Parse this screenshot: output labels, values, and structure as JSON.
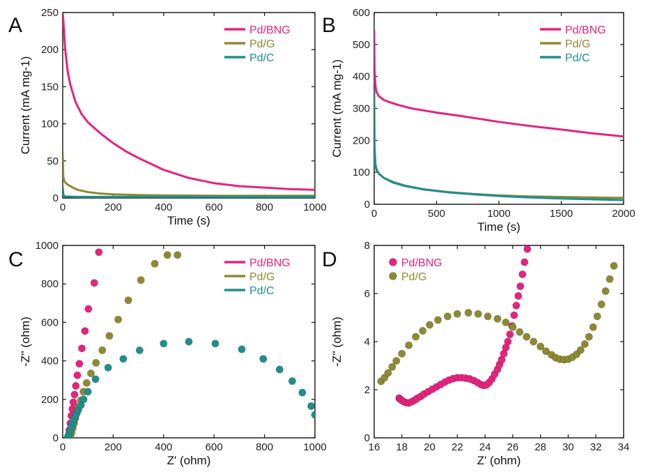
{
  "figure": {
    "colors": {
      "Pd/BNG": "#e6237e",
      "Pd/G": "#8d8a32",
      "Pd/C": "#1f8f8c"
    }
  },
  "chart_data": [
    {
      "panel": "A",
      "type": "line",
      "xlabel": "Time (s)",
      "ylabel": "Current (mA mg-1)",
      "xlim": [
        0,
        1000
      ],
      "ylim": [
        0,
        250
      ],
      "xticks": [
        0,
        200,
        400,
        600,
        800,
        1000
      ],
      "yticks": [
        0,
        50,
        100,
        150,
        200,
        250
      ],
      "legend": "top-right",
      "grid": false,
      "series": [
        {
          "name": "Pd/BNG",
          "color": "#e6237e",
          "x": [
            0,
            5,
            10,
            20,
            30,
            50,
            75,
            100,
            150,
            200,
            250,
            300,
            400,
            500,
            600,
            700,
            800,
            900,
            1000
          ],
          "y": [
            250,
            228,
            200,
            170,
            153,
            130,
            113,
            102,
            87,
            74,
            63,
            54,
            38,
            27,
            20,
            16,
            14,
            12,
            11
          ]
        },
        {
          "name": "Pd/G",
          "color": "#8d8a32",
          "x": [
            0,
            2,
            5,
            10,
            20,
            40,
            60,
            100,
            150,
            200,
            300,
            400,
            600,
            800,
            1000
          ],
          "y": [
            62,
            30,
            24,
            21,
            18,
            14,
            11,
            8,
            6,
            5,
            4,
            3.5,
            3,
            3,
            3
          ]
        },
        {
          "name": "Pd/C",
          "color": "#1f8f8c",
          "x": [
            0,
            2,
            5,
            10,
            20,
            50,
            100,
            200,
            400,
            600,
            800,
            1000
          ],
          "y": [
            15,
            6,
            3,
            2,
            2,
            1.5,
            1.5,
            1.5,
            1.5,
            1.5,
            1.5,
            1.5
          ]
        }
      ]
    },
    {
      "panel": "B",
      "type": "line",
      "xlabel": "Time (s)",
      "ylabel": "Current (mA mg-1)",
      "xlim": [
        0,
        2000
      ],
      "ylim": [
        0,
        600
      ],
      "xticks": [
        0,
        500,
        1000,
        1500,
        2000
      ],
      "yticks": [
        0,
        100,
        200,
        300,
        400,
        500,
        600
      ],
      "legend": "top-right",
      "grid": false,
      "series": [
        {
          "name": "Pd/BNG",
          "color": "#e6237e",
          "x": [
            0,
            3,
            10,
            20,
            40,
            80,
            120,
            200,
            300,
            500,
            700,
            1000,
            1250,
            1500,
            1750,
            2000
          ],
          "y": [
            545,
            420,
            370,
            350,
            337,
            326,
            320,
            310,
            300,
            287,
            276,
            258,
            245,
            234,
            222,
            212
          ]
        },
        {
          "name": "Pd/G",
          "color": "#8d8a32",
          "x": [
            0,
            3,
            10,
            20,
            40,
            80,
            150,
            250,
            400,
            600,
            800,
            1000,
            1200,
            1500,
            1800,
            2000
          ],
          "y": [
            180,
            140,
            118,
            105,
            95,
            82,
            70,
            58,
            47,
            38,
            32,
            28,
            25,
            23,
            21,
            20
          ]
        },
        {
          "name": "Pd/C",
          "color": "#1f8f8c",
          "x": [
            0,
            3,
            10,
            20,
            40,
            80,
            150,
            250,
            400,
            600,
            800,
            1000,
            1200,
            1500,
            1800,
            2000
          ],
          "y": [
            360,
            180,
            125,
            108,
            95,
            82,
            68,
            57,
            46,
            37,
            31,
            26,
            22,
            18,
            15,
            13
          ]
        }
      ]
    },
    {
      "panel": "C",
      "type": "scatter",
      "xlabel": "Z' (ohm)",
      "ylabel": "-Z'' (ohm)",
      "xlim": [
        0,
        1000
      ],
      "ylim": [
        0,
        1000
      ],
      "xticks": [
        0,
        200,
        400,
        600,
        800,
        1000
      ],
      "yticks": [
        0,
        200,
        400,
        600,
        800,
        1000
      ],
      "legend": "top-right",
      "grid": false,
      "series": [
        {
          "name": "Pd/BNG",
          "color": "#e6237e",
          "x": [
            22,
            26,
            30,
            34,
            38,
            42,
            47,
            52,
            58,
            66,
            76,
            88,
            102,
            125,
            143
          ],
          "y": [
            10,
            40,
            75,
            115,
            150,
            185,
            225,
            270,
            325,
            385,
            465,
            555,
            670,
            805,
            965
          ]
        },
        {
          "name": "Pd/G",
          "color": "#8d8a32",
          "x": [
            30,
            35,
            40,
            45,
            50,
            56,
            63,
            72,
            82,
            95,
            112,
            132,
            157,
            185,
            220,
            260,
            310,
            365,
            415,
            455
          ],
          "y": [
            5,
            25,
            50,
            75,
            100,
            130,
            160,
            195,
            240,
            285,
            335,
            390,
            455,
            530,
            615,
            715,
            820,
            905,
            950,
            950
          ]
        },
        {
          "name": "Pd/C",
          "color": "#1f8f8c",
          "x": [
            20,
            25,
            30,
            35,
            40,
            46,
            53,
            62,
            72,
            83,
            100,
            130,
            180,
            240,
            305,
            400,
            500,
            605,
            710,
            795,
            860,
            910,
            950,
            985,
            1000
          ],
          "y": [
            5,
            20,
            40,
            60,
            80,
            100,
            120,
            145,
            170,
            200,
            240,
            305,
            365,
            410,
            455,
            490,
            500,
            490,
            460,
            410,
            355,
            295,
            235,
            165,
            120
          ]
        }
      ]
    },
    {
      "panel": "D",
      "type": "scatter",
      "xlabel": "Z' (ohm)",
      "ylabel": "-Z'' (ohm)",
      "xlim": [
        16,
        34
      ],
      "ylim": [
        0,
        8
      ],
      "xticks": [
        16,
        18,
        20,
        22,
        24,
        26,
        28,
        30,
        32,
        34
      ],
      "yticks": [
        0,
        2,
        4,
        6,
        8
      ],
      "legend": "top-left",
      "grid": false,
      "series": [
        {
          "name": "Pd/BNG",
          "color": "#e6237e",
          "x": [
            17.8,
            17.9,
            18.0,
            18.15,
            18.3,
            18.5,
            18.7,
            18.9,
            19.1,
            19.35,
            19.6,
            19.9,
            20.2,
            20.5,
            20.8,
            21.1,
            21.4,
            21.7,
            22.0,
            22.3,
            22.6,
            22.9,
            23.2,
            23.45,
            23.7,
            23.9,
            24.1,
            24.3,
            24.5,
            24.7,
            24.9,
            25.05,
            25.2,
            25.35,
            25.5,
            25.65,
            25.8,
            25.95,
            26.1,
            26.25,
            26.4,
            26.55,
            26.7,
            26.85,
            27.05
          ],
          "y": [
            1.65,
            1.6,
            1.55,
            1.5,
            1.46,
            1.45,
            1.5,
            1.56,
            1.64,
            1.72,
            1.82,
            1.92,
            2.02,
            2.12,
            2.22,
            2.32,
            2.4,
            2.46,
            2.5,
            2.5,
            2.48,
            2.45,
            2.38,
            2.3,
            2.22,
            2.18,
            2.2,
            2.3,
            2.45,
            2.65,
            2.85,
            3.05,
            3.25,
            3.5,
            3.75,
            4.0,
            4.3,
            4.65,
            5.1,
            5.5,
            5.9,
            6.3,
            6.8,
            7.3,
            7.85
          ]
        },
        {
          "name": "Pd/G",
          "color": "#8d8a32",
          "x": [
            16.5,
            16.75,
            17.0,
            17.3,
            17.6,
            18.0,
            18.5,
            19.0,
            19.5,
            20.0,
            20.6,
            21.3,
            22.0,
            22.8,
            23.5,
            24.2,
            24.9,
            25.5,
            26.0,
            26.5,
            27.0,
            27.5,
            28.0,
            28.4,
            28.8,
            29.1,
            29.4,
            29.7,
            30.0,
            30.3,
            30.6,
            30.9,
            31.2,
            31.5,
            31.8,
            32.1,
            32.4,
            32.7,
            33.0,
            33.3
          ],
          "y": [
            2.35,
            2.5,
            2.7,
            2.95,
            3.2,
            3.5,
            3.85,
            4.2,
            4.45,
            4.7,
            4.9,
            5.05,
            5.15,
            5.2,
            5.15,
            5.05,
            4.95,
            4.8,
            4.6,
            4.4,
            4.2,
            4.0,
            3.8,
            3.6,
            3.45,
            3.33,
            3.27,
            3.25,
            3.27,
            3.35,
            3.47,
            3.65,
            3.9,
            4.2,
            4.6,
            5.05,
            5.55,
            6.1,
            6.6,
            7.15
          ]
        }
      ]
    }
  ]
}
